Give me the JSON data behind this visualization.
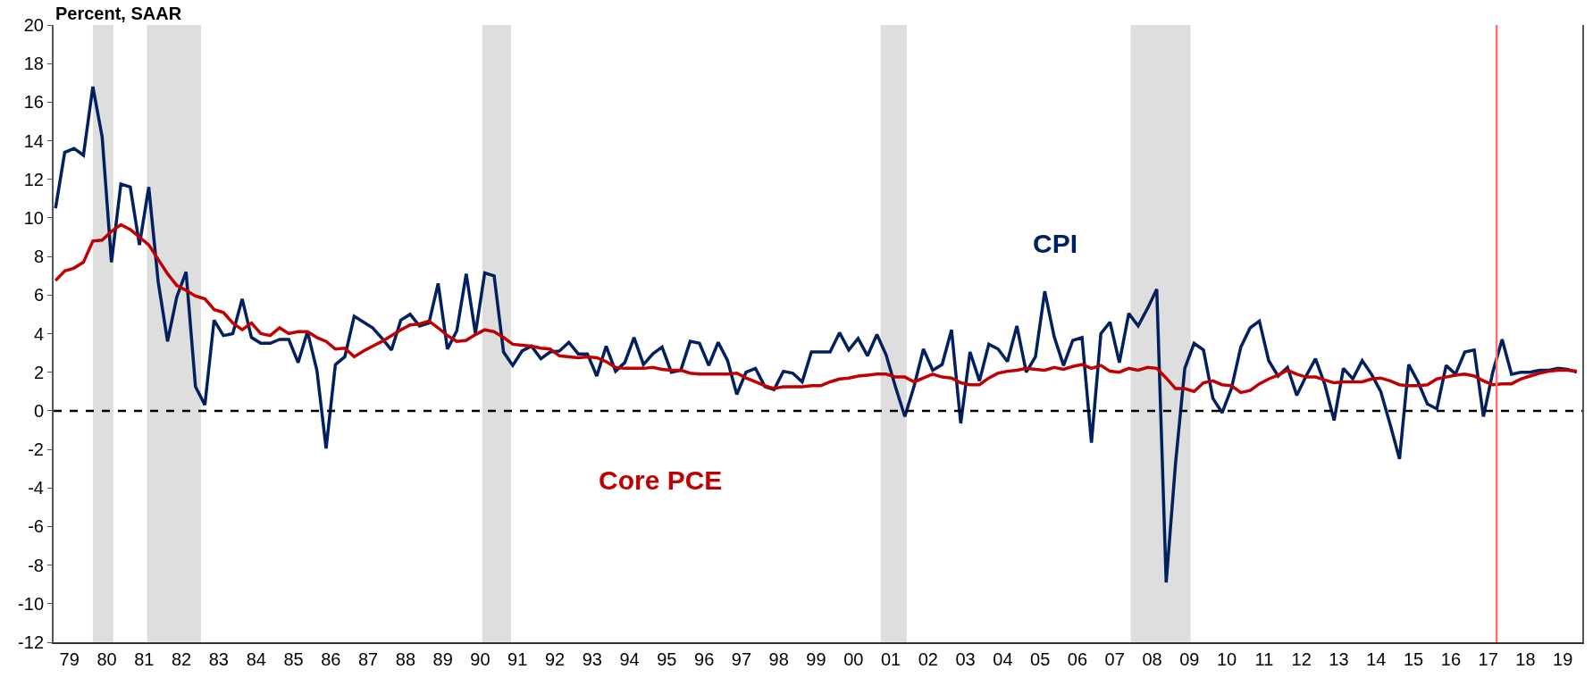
{
  "chart_data": {
    "type": "line",
    "ylabel": "Percent, SAAR",
    "x": [
      "1979-01",
      "1979-04",
      "1979-07",
      "1979-10",
      "1980-01",
      "1980-04",
      "1980-07",
      "1980-10",
      "1981-01",
      "1981-04",
      "1981-07",
      "1981-10",
      "1982-01",
      "1982-04",
      "1982-07",
      "1982-10",
      "1983-01",
      "1983-04",
      "1983-07",
      "1983-10",
      "1984-01",
      "1984-04",
      "1984-07",
      "1984-10",
      "1985-01",
      "1985-04",
      "1985-07",
      "1985-10",
      "1986-01",
      "1986-04",
      "1986-07",
      "1986-10",
      "1987-01",
      "1987-04",
      "1987-07",
      "1987-10",
      "1988-01",
      "1988-04",
      "1988-07",
      "1988-10",
      "1989-01",
      "1989-04",
      "1989-07",
      "1989-10",
      "1990-01",
      "1990-04",
      "1990-07",
      "1990-10",
      "1991-01",
      "1991-04",
      "1991-07",
      "1991-10",
      "1992-01",
      "1992-04",
      "1992-07",
      "1992-10",
      "1993-01",
      "1993-04",
      "1993-07",
      "1993-10",
      "1994-01",
      "1994-04",
      "1994-07",
      "1994-10",
      "1995-01",
      "1995-04",
      "1995-07",
      "1995-10",
      "1996-01",
      "1996-04",
      "1996-07",
      "1996-10",
      "1997-01",
      "1997-04",
      "1997-07",
      "1997-10",
      "1998-01",
      "1998-04",
      "1998-07",
      "1998-10",
      "1999-01",
      "1999-04",
      "1999-07",
      "1999-10",
      "2000-01",
      "2000-04",
      "2000-07",
      "2000-10",
      "2001-01",
      "2001-04",
      "2001-07",
      "2001-10",
      "2002-01",
      "2002-04",
      "2002-07",
      "2002-10",
      "2003-01",
      "2003-04",
      "2003-07",
      "2003-10",
      "2004-01",
      "2004-04",
      "2004-07",
      "2004-10",
      "2005-01",
      "2005-04",
      "2005-07",
      "2005-10",
      "2006-01",
      "2006-04",
      "2006-07",
      "2006-10",
      "2007-01",
      "2007-04",
      "2007-07",
      "2007-10",
      "2008-01",
      "2008-04",
      "2008-07",
      "2008-10",
      "2009-01",
      "2009-04",
      "2009-07",
      "2009-10",
      "2010-01",
      "2010-04",
      "2010-07",
      "2010-10",
      "2011-01",
      "2011-04",
      "2011-07",
      "2011-10",
      "2012-01",
      "2012-04",
      "2012-07",
      "2012-10",
      "2013-01",
      "2013-04",
      "2013-07",
      "2013-10",
      "2014-01",
      "2014-04",
      "2014-07",
      "2014-10",
      "2015-01",
      "2015-04",
      "2015-07",
      "2015-10",
      "2016-01",
      "2016-04",
      "2016-07",
      "2016-10",
      "2017-01",
      "2017-04",
      "2017-07",
      "2017-10",
      "2018-01",
      "2018-04",
      "2018-07",
      "2018-10",
      "2019-01",
      "2019-04",
      "2019-07",
      "2019-10"
    ],
    "series": [
      {
        "name": "CPI",
        "color": "#002060",
        "values": [
          10.5,
          13.4,
          13.6,
          13.25,
          16.8,
          14.2,
          7.7,
          11.75,
          11.6,
          8.6,
          11.6,
          6.7,
          3.6,
          5.9,
          7.2,
          1.25,
          0.3,
          4.7,
          3.9,
          4.0,
          5.8,
          3.8,
          3.5,
          3.5,
          3.7,
          3.7,
          2.5,
          4.1,
          2.1,
          -1.95,
          2.4,
          2.8,
          4.9,
          4.6,
          4.3,
          3.75,
          3.15,
          4.7,
          5.0,
          4.4,
          4.55,
          6.6,
          3.2,
          4.15,
          7.1,
          4.0,
          7.15,
          7.0,
          3.05,
          2.35,
          3.1,
          3.35,
          2.7,
          3.05,
          3.1,
          3.55,
          2.95,
          2.95,
          1.8,
          3.35,
          2.05,
          2.5,
          3.8,
          2.4,
          2.95,
          3.3,
          2.0,
          2.1,
          3.6,
          3.5,
          2.35,
          3.55,
          2.6,
          0.85,
          2.0,
          2.2,
          1.25,
          1.1,
          2.05,
          1.95,
          1.5,
          3.05,
          3.05,
          3.05,
          4.05,
          3.15,
          3.75,
          2.85,
          3.95,
          2.9,
          1.25,
          -0.3,
          1.3,
          3.2,
          2.1,
          2.4,
          4.2,
          -0.65,
          3.05,
          1.55,
          3.45,
          3.2,
          2.55,
          4.4,
          2.0,
          2.8,
          6.2,
          3.85,
          2.35,
          3.65,
          3.8,
          -1.65,
          4.0,
          4.6,
          2.5,
          5.05,
          4.4,
          5.3,
          6.3,
          -8.9,
          -2.7,
          2.2,
          3.5,
          3.15,
          0.65,
          -0.1,
          1.15,
          3.3,
          4.3,
          4.65,
          2.6,
          1.8,
          2.25,
          0.8,
          1.8,
          2.7,
          1.35,
          -0.5,
          2.2,
          1.65,
          2.6,
          1.9,
          1.0,
          -0.7,
          -2.5,
          2.4,
          1.5,
          0.35,
          0.1,
          2.35,
          1.9,
          3.05,
          3.15,
          -0.3,
          2.0,
          3.7,
          1.9,
          2.0,
          2.0,
          2.1,
          2.1,
          2.2,
          2.15,
          2.0
        ]
      },
      {
        "name": "Core PCE",
        "color": "#c00000",
        "values": [
          6.75,
          7.25,
          7.4,
          7.7,
          8.8,
          8.85,
          9.3,
          9.65,
          9.4,
          9.0,
          8.6,
          7.85,
          7.1,
          6.5,
          6.25,
          5.95,
          5.8,
          5.25,
          5.1,
          4.55,
          4.2,
          4.55,
          4.0,
          3.9,
          4.3,
          4.0,
          4.1,
          4.1,
          3.8,
          3.6,
          3.2,
          3.25,
          2.8,
          3.1,
          3.35,
          3.6,
          3.9,
          4.2,
          4.45,
          4.5,
          4.65,
          4.3,
          3.9,
          3.6,
          3.65,
          3.95,
          4.2,
          4.1,
          3.8,
          3.45,
          3.4,
          3.35,
          3.25,
          3.2,
          2.85,
          2.8,
          2.75,
          2.8,
          2.75,
          2.55,
          2.25,
          2.2,
          2.2,
          2.2,
          2.25,
          2.15,
          2.1,
          2.1,
          1.95,
          1.9,
          1.9,
          1.9,
          1.9,
          1.95,
          1.7,
          1.5,
          1.3,
          1.15,
          1.25,
          1.25,
          1.25,
          1.3,
          1.3,
          1.5,
          1.65,
          1.7,
          1.8,
          1.85,
          1.9,
          1.9,
          1.75,
          1.75,
          1.5,
          1.7,
          1.9,
          1.75,
          1.7,
          1.45,
          1.35,
          1.35,
          1.7,
          1.95,
          2.05,
          2.1,
          2.2,
          2.15,
          2.1,
          2.25,
          2.15,
          2.3,
          2.4,
          2.2,
          2.35,
          2.05,
          2.0,
          2.2,
          2.1,
          2.25,
          2.2,
          1.7,
          1.15,
          1.15,
          1.0,
          1.45,
          1.55,
          1.35,
          1.3,
          0.95,
          1.05,
          1.4,
          1.65,
          1.85,
          2.1,
          1.9,
          1.75,
          1.75,
          1.6,
          1.45,
          1.5,
          1.5,
          1.5,
          1.65,
          1.7,
          1.55,
          1.35,
          1.3,
          1.3,
          1.35,
          1.65,
          1.75,
          1.85,
          1.9,
          1.8,
          1.55,
          1.35,
          1.4,
          1.4,
          1.65,
          1.8,
          1.95,
          2.05,
          2.1,
          2.1,
          2.05
        ]
      }
    ],
    "xlim": [
      "1978-12-13",
      "2019-11-24"
    ],
    "xticks": [
      {
        "value": "1979-05-17",
        "label": "79"
      },
      {
        "value": "1980-05-17",
        "label": "80"
      },
      {
        "value": "1981-05-17",
        "label": "81"
      },
      {
        "value": "1982-05-17",
        "label": "82"
      },
      {
        "value": "1983-05-17",
        "label": "83"
      },
      {
        "value": "1984-05-17",
        "label": "84"
      },
      {
        "value": "1985-05-17",
        "label": "85"
      },
      {
        "value": "1986-05-17",
        "label": "86"
      },
      {
        "value": "1987-05-17",
        "label": "87"
      },
      {
        "value": "1988-05-17",
        "label": "88"
      },
      {
        "value": "1989-05-17",
        "label": "89"
      },
      {
        "value": "1990-05-17",
        "label": "90"
      },
      {
        "value": "1991-05-17",
        "label": "91"
      },
      {
        "value": "1992-05-17",
        "label": "92"
      },
      {
        "value": "1993-05-17",
        "label": "93"
      },
      {
        "value": "1994-05-17",
        "label": "94"
      },
      {
        "value": "1995-05-17",
        "label": "95"
      },
      {
        "value": "1996-05-17",
        "label": "96"
      },
      {
        "value": "1997-05-17",
        "label": "97"
      },
      {
        "value": "1998-05-17",
        "label": "98"
      },
      {
        "value": "1999-05-17",
        "label": "99"
      },
      {
        "value": "2000-05-17",
        "label": "00"
      },
      {
        "value": "2001-05-17",
        "label": "01"
      },
      {
        "value": "2002-05-17",
        "label": "02"
      },
      {
        "value": "2003-05-17",
        "label": "03"
      },
      {
        "value": "2004-05-17",
        "label": "04"
      },
      {
        "value": "2005-05-17",
        "label": "05"
      },
      {
        "value": "2006-05-17",
        "label": "06"
      },
      {
        "value": "2007-05-17",
        "label": "07"
      },
      {
        "value": "2008-05-17",
        "label": "08"
      },
      {
        "value": "2009-05-17",
        "label": "09"
      },
      {
        "value": "2010-05-17",
        "label": "10"
      },
      {
        "value": "2011-05-17",
        "label": "11"
      },
      {
        "value": "2012-05-17",
        "label": "12"
      },
      {
        "value": "2013-05-17",
        "label": "13"
      },
      {
        "value": "2014-05-17",
        "label": "14"
      },
      {
        "value": "2015-05-17",
        "label": "15"
      },
      {
        "value": "2016-05-17",
        "label": "16"
      },
      {
        "value": "2017-05-17",
        "label": "17"
      },
      {
        "value": "2018-05-17",
        "label": "18"
      },
      {
        "value": "2019-05-17",
        "label": "19"
      }
    ],
    "ylim": [
      -12,
      20
    ],
    "yticks": [
      -12,
      -10,
      -8,
      -6,
      -4,
      -2,
      0,
      2,
      4,
      6,
      8,
      10,
      12,
      14,
      16,
      18,
      20
    ],
    "ref_lines": [
      {
        "axis": "y",
        "value": 0,
        "color": "#000000",
        "line_style": "dashed"
      },
      {
        "axis": "x",
        "value": "2017-08-08",
        "color": "#ff7070",
        "line_style": "solid"
      }
    ],
    "bands": [
      {
        "axis": "x",
        "from": "1980-01-01",
        "to": "1980-07-19",
        "color": "#dedede"
      },
      {
        "axis": "x",
        "from": "1981-06-14",
        "to": "1982-11-24",
        "color": "#dedede"
      },
      {
        "axis": "x",
        "from": "1990-06-06",
        "to": "1991-03-15",
        "color": "#dedede"
      },
      {
        "axis": "x",
        "from": "2001-02-06",
        "to": "2001-10-20",
        "color": "#dedede"
      },
      {
        "axis": "x",
        "from": "2007-10-20",
        "to": "2009-05-27",
        "color": "#dedede"
      }
    ],
    "grid": false,
    "legend": false
  }
}
